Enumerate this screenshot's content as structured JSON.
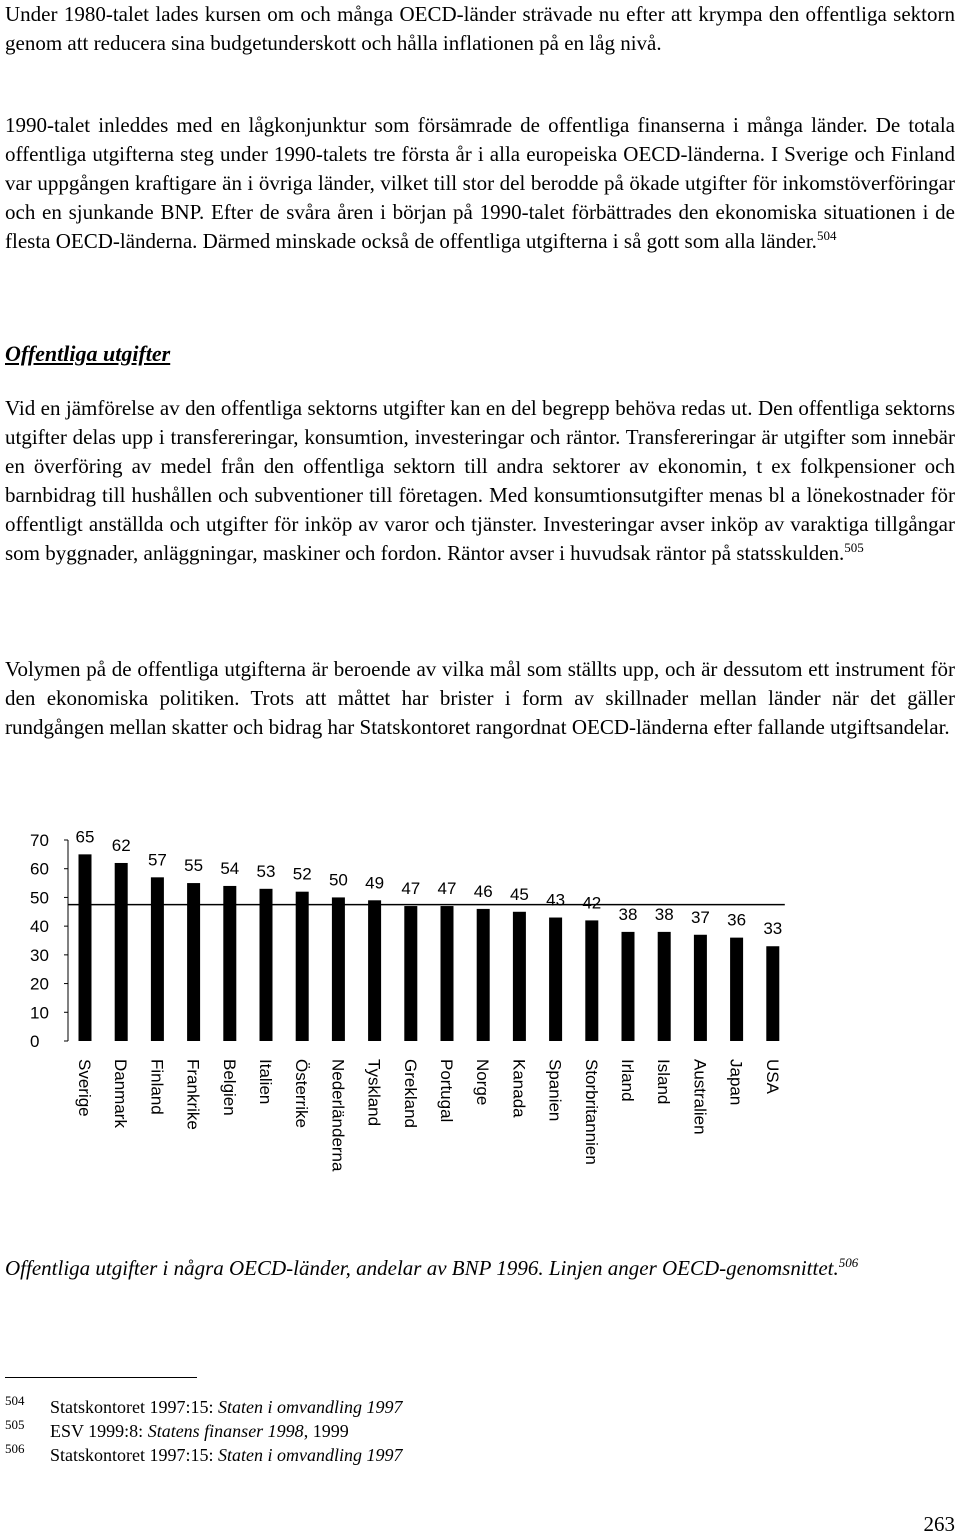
{
  "paragraphs": [
    {
      "text": "Under 1980-talet lades kursen om och många OECD-länder strävade nu efter att krympa den offentliga sektorn genom att reducera sina budgetunderskott och hålla inflationen på en låg nivå.",
      "sup": ""
    },
    {
      "text": "1990-talet inleddes med en lågkonjunktur som försämrade de offentliga finanserna i många länder. De totala offentliga utgifterna steg under 1990-talets tre första år i alla europeiska OECD-länderna. I Sverige och Finland var uppgången kraftigare än i övriga länder, vilket till stor del berodde på ökade utgifter för inkomstöverföringar och en sjunkande BNP. Efter de svåra åren i början på 1990-talet förbättrades den ekonomiska situationen i de flesta OECD-länderna. Därmed minskade också de offentliga utgifterna i så gott som alla länder.",
      "sup": "504"
    },
    {
      "text": "Vid en jämförelse av den offentliga sektorns utgifter kan en del begrepp behöva redas ut. Den offentliga sektorns utgifter delas upp i transfereringar, konsumtion, investeringar och räntor. Transfereringar är utgifter som innebär en överföring av medel från den offentliga sektorn till andra sektorer av ekonomin, t ex folkpensioner och barnbidrag till hushållen och subventioner till företagen. Med konsumtionsutgifter menas bl a lönekostnader för offentligt anställda och utgifter för inköp av varor och tjänster. Investeringar avser inköp av varaktiga tillgångar som byggnader, anläggningar, maskiner och fordon. Räntor avser i huvudsak räntor på statsskulden.",
      "sup": "505"
    },
    {
      "text": "Volymen på de offentliga utgifterna är beroende av vilka mål som ställts upp, och är dessutom ett instrument för den ekonomiska politiken. Trots att måttet har brister i form av skillnader mellan länder när det gäller rundgången mellan skatter och bidrag har Statskontoret rangordnat OECD-länderna efter fallande utgiftsandelar.",
      "sup": ""
    }
  ],
  "heading": "Offentliga utgifter",
  "chart_data": {
    "type": "bar",
    "categories": [
      "Sverige",
      "Danmark",
      "Finland",
      "Frankrike",
      "Belgien",
      "Italien",
      "Österrike",
      "Nederländerna",
      "Tyskland",
      "Grekland",
      "Portugal",
      "Norge",
      "Kanada",
      "Spanien",
      "Storbritannien",
      "Irland",
      "Island",
      "Australien",
      "Japan",
      "USA"
    ],
    "values": [
      65,
      62,
      57,
      55,
      54,
      53,
      52,
      50,
      49,
      47,
      47,
      46,
      45,
      43,
      42,
      38,
      38,
      37,
      36,
      33
    ],
    "data_labels": [
      "65",
      "62",
      "57",
      "55",
      "54",
      "53",
      "52",
      "50",
      "49",
      "47",
      "47",
      "46",
      "45",
      "43",
      "42",
      "38",
      "38",
      "37",
      "36",
      "33"
    ],
    "yticks": [
      "0",
      "10",
      "20",
      "30",
      "40",
      "50",
      "60",
      "70"
    ],
    "ylim": [
      0,
      70
    ],
    "reference_line": 47.5,
    "bar_color": "#000000",
    "title": "",
    "xlabel": "",
    "ylabel": "",
    "grid": false
  },
  "caption": {
    "text": "Offentliga utgifter i några OECD-länder, andelar av BNP 1996. Linjen anger OECD-genomsnittet.",
    "sup": "506"
  },
  "footnotes": [
    {
      "num": "504",
      "prefix": "Statskontoret 1997:15: ",
      "italic": "Staten i omvandling 1997",
      "suffix": ""
    },
    {
      "num": "505",
      "prefix": "ESV 1999:8: ",
      "italic": "Statens finanser 1998",
      "suffix": ", 1999"
    },
    {
      "num": "506",
      "prefix": "Statskontoret 1997:15: ",
      "italic": "Staten i omvandling 1997",
      "suffix": ""
    }
  ],
  "page_number": "263"
}
